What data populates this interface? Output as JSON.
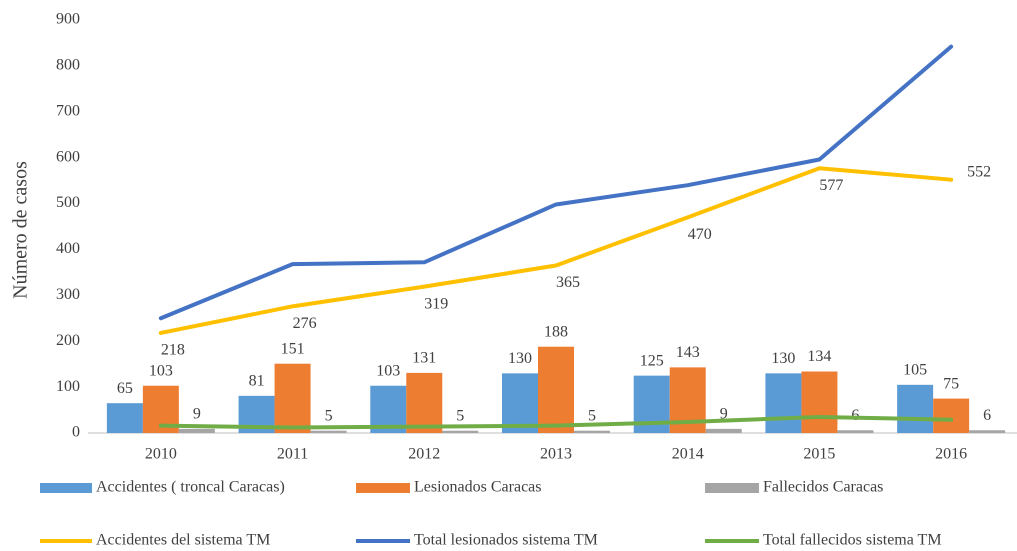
{
  "chart_data": {
    "type": "combo",
    "y_label": "Número de casos",
    "categories": [
      "2010",
      "2011",
      "2012",
      "2013",
      "2014",
      "2015",
      "2016"
    ],
    "ylim": [
      0,
      900
    ],
    "yticks": [
      0,
      100,
      200,
      300,
      400,
      500,
      600,
      700,
      800,
      900
    ],
    "grid": false,
    "legend": "bottom",
    "series": [
      {
        "name": "Accidentes ( troncal  Caracas)",
        "type": "bar",
        "color": "#5b9bd5",
        "data_labels": true,
        "values": [
          65,
          81,
          103,
          130,
          125,
          130,
          105
        ]
      },
      {
        "name": "Lesionados Caracas",
        "type": "bar",
        "color": "#ed7d31",
        "data_labels": true,
        "values": [
          103,
          151,
          131,
          188,
          143,
          134,
          75
        ]
      },
      {
        "name": "Fallecidos Caracas",
        "type": "bar",
        "color": "#a5a5a5",
        "data_labels": true,
        "values": [
          9,
          5,
          5,
          5,
          9,
          6,
          6
        ]
      },
      {
        "name": "Accidentes del sistema TM",
        "type": "line",
        "color": "#ffc000",
        "data_labels": true,
        "values": [
          218,
          276,
          319,
          365,
          470,
          577,
          552
        ]
      },
      {
        "name": "Total lesionados sistema TM",
        "type": "line",
        "color": "#4472c4",
        "data_labels": false,
        "values": [
          250,
          368,
          372,
          498,
          540,
          596,
          842
        ]
      },
      {
        "name": "Total fallecidos sistema TM",
        "type": "line",
        "color": "#70ad47",
        "data_labels": false,
        "values": [
          16,
          12,
          14,
          16,
          24,
          35,
          29
        ]
      }
    ]
  }
}
